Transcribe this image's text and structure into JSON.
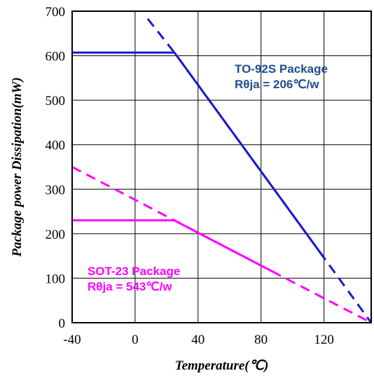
{
  "chart_data": {
    "type": "line",
    "title": "",
    "xlabel": "Temperature(℃)",
    "ylabel": "Package power Dissipation(mW)",
    "xlim": [
      -40,
      150
    ],
    "ylim": [
      0,
      700
    ],
    "xticks": [
      -40,
      0,
      40,
      80,
      120
    ],
    "yticks": [
      0,
      100,
      200,
      300,
      400,
      500,
      600,
      700
    ],
    "grid": true,
    "series": [
      {
        "name": "TO-92S Package",
        "color": "#1a1acc",
        "solid": [
          [
            -40,
            607
          ],
          [
            25,
            607
          ],
          [
            120,
            146
          ]
        ],
        "dashed": [
          [
            8,
            683
          ],
          [
            25,
            607
          ],
          [
            120,
            146
          ],
          [
            150,
            0
          ]
        ]
      },
      {
        "name": "SOT-23 Package",
        "color": "#ff00ff",
        "solid": [
          [
            -40,
            230
          ],
          [
            25,
            230
          ],
          [
            40,
            202
          ],
          [
            90,
            110
          ]
        ],
        "dashed": [
          [
            -40,
            350
          ],
          [
            25,
            230
          ],
          [
            90,
            110
          ],
          [
            150,
            0
          ]
        ]
      }
    ],
    "annotations": [
      {
        "series": 0,
        "lines": [
          "TO-92S Package",
          "Rθja = 206℃/w"
        ],
        "color": "#1f4e8c"
      },
      {
        "series": 1,
        "lines": [
          "SOT-23 Package",
          "Rθja = 543℃/w"
        ],
        "color": "#ff00ff"
      }
    ]
  }
}
